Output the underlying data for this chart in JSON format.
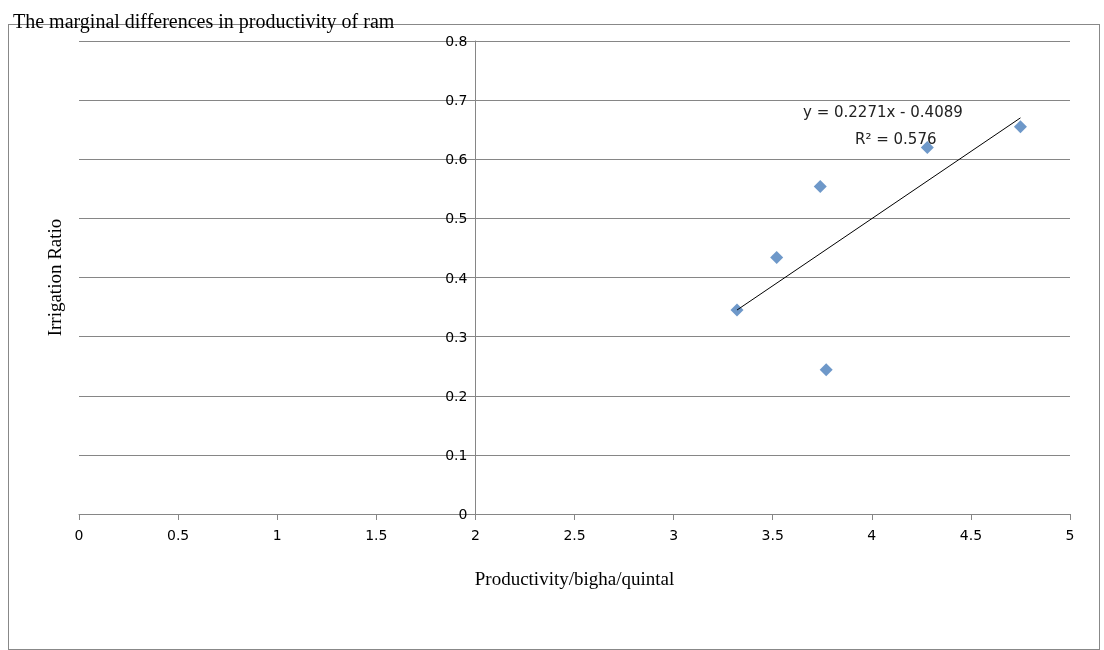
{
  "chart_data": {
    "type": "scatter",
    "title": "The marginal differences in productivity of ram",
    "xlabel": "Productivity/bigha/quintal",
    "ylabel": "Irrigation Ratio",
    "x": [
      3.32,
      3.52,
      3.74,
      3.77,
      4.28,
      4.75
    ],
    "series": [
      {
        "color": "#4a7ebb",
        "marker": "diamond",
        "values": [
          0.345,
          0.434,
          0.554,
          0.244,
          0.62,
          0.655
        ]
      },
      {
        "type": "line",
        "marker": "none",
        "color": "#000000",
        "x": [
          3.32,
          4.75
        ],
        "values": [
          0.345,
          0.67
        ]
      }
    ],
    "xlim": [
      0,
      5
    ],
    "xticks": [
      0,
      0.5,
      1,
      1.5,
      2,
      2.5,
      3,
      3.5,
      4,
      4.5,
      5
    ],
    "ylim": [
      0,
      0.8
    ],
    "yticks": [
      0,
      0.1,
      0.2,
      0.3,
      0.4,
      0.5,
      0.6,
      0.7,
      0.8
    ],
    "grid": "y",
    "annotations": [
      "y = 0.2271x - 0.4089",
      "R² = 0.576"
    ]
  }
}
